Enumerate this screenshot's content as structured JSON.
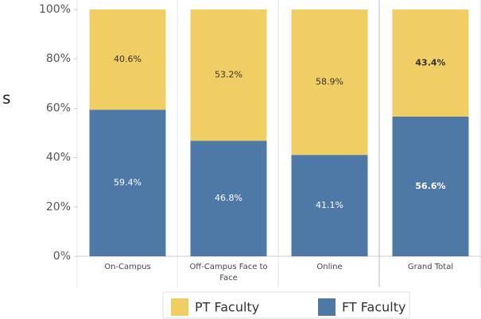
{
  "chart_data": {
    "type": "stacked_bar",
    "side_text": "s",
    "categories": [
      "On-Campus",
      "Off-Campus Face to Face",
      "Online",
      "Grand Total"
    ],
    "series": [
      {
        "name": "PT Faculty",
        "color": "#f1ce63",
        "values": [
          40.6,
          53.2,
          58.9,
          43.4
        ],
        "value_labels": [
          "40.6%",
          "53.2%",
          "58.9%",
          "43.4%"
        ]
      },
      {
        "name": "FT Faculty",
        "color": "#4e79a7",
        "values": [
          59.4,
          46.8,
          41.1,
          56.6
        ],
        "value_labels": [
          "59.4%",
          "46.8%",
          "41.1%",
          "56.6%"
        ]
      }
    ],
    "ylim": [
      0,
      100
    ],
    "yticks": [
      {
        "value": 0,
        "label": "0%"
      },
      {
        "value": 20,
        "label": "20%"
      },
      {
        "value": 40,
        "label": "40%"
      },
      {
        "value": 60,
        "label": "60%"
      },
      {
        "value": 80,
        "label": "80%"
      },
      {
        "value": 100,
        "label": "100%"
      }
    ],
    "legend": "bottom"
  }
}
